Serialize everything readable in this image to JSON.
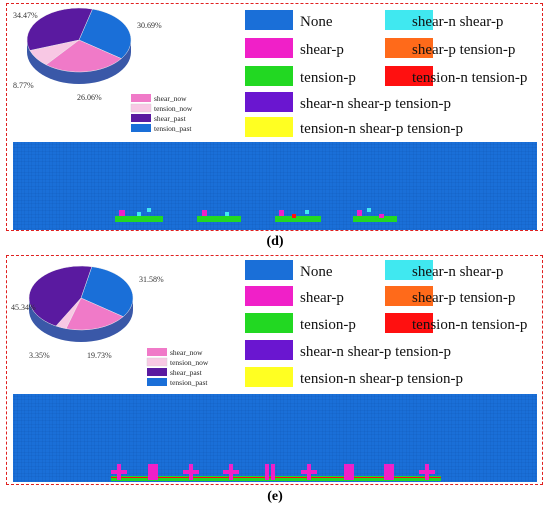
{
  "legend_colors": {
    "none": "#1a6fd8",
    "shear_n_shear_p": "#40e8f0",
    "shear_p": "#f020c8",
    "shear_p_tension_p": "#ff6a1a",
    "tension_p": "#22d822",
    "tension_n_tension_p": "#ff1010",
    "shear_n_shear_p_tension_p": "#6a16d0",
    "tension_n_shear_p_tension_p": "#ffff22"
  },
  "legend_labels": {
    "none": "None",
    "shear_n_shear_p": "shear-n shear-p",
    "shear_p": "shear-p",
    "shear_p_tension_p": "shear-p tension-p",
    "tension_p": "tension-p",
    "tension_n_tension_p": "tension-n tension-p",
    "shear_n_shear_p_tension_p": "shear-n shear-p tension-p",
    "tension_n_shear_p_tension_p": "tension-n shear-p tension-p"
  },
  "pie_legend": {
    "items": [
      "shear_now",
      "tension_now",
      "shear_past",
      "tension_past"
    ],
    "colors": [
      "#f07ac8",
      "#f8c8e4",
      "#5a1aa0",
      "#1a6fd8"
    ]
  },
  "panels": [
    {
      "label": "(d)",
      "pie": {
        "slices": [
          {
            "name": "tension_past",
            "value": 30.69,
            "label": "30.69%"
          },
          {
            "name": "shear_now",
            "value": 26.06,
            "label": "26.06%"
          },
          {
            "name": "tension_now",
            "value": 8.77,
            "label": "8.77%"
          },
          {
            "name": "shear_past",
            "value": 34.47,
            "label": "34.47%"
          }
        ]
      }
    },
    {
      "label": "(e)",
      "pie": {
        "slices": [
          {
            "name": "tension_past",
            "value": 31.58,
            "label": "31.58%"
          },
          {
            "name": "shear_now",
            "value": 19.73,
            "label": "19.73%"
          },
          {
            "name": "tension_now",
            "value": 3.35,
            "label": "3.35%"
          },
          {
            "name": "shear_past",
            "value": 45.34,
            "label": "45.34%"
          }
        ]
      }
    }
  ]
}
